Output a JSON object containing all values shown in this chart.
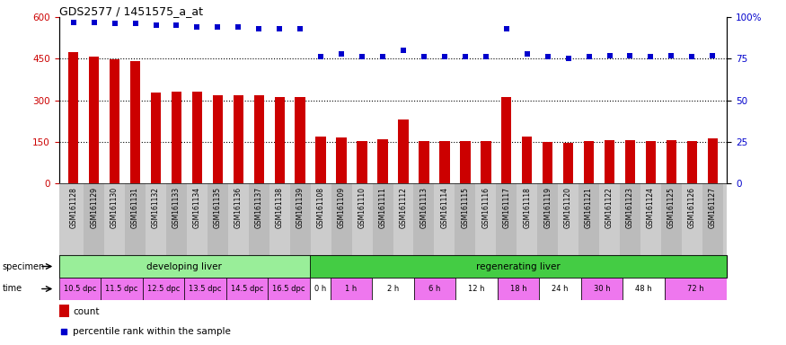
{
  "title": "GDS2577 / 1451575_a_at",
  "samples": [
    "GSM161128",
    "GSM161129",
    "GSM161130",
    "GSM161131",
    "GSM161132",
    "GSM161133",
    "GSM161134",
    "GSM161135",
    "GSM161136",
    "GSM161137",
    "GSM161138",
    "GSM161139",
    "GSM161108",
    "GSM161109",
    "GSM161110",
    "GSM161111",
    "GSM161112",
    "GSM161113",
    "GSM161114",
    "GSM161115",
    "GSM161116",
    "GSM161117",
    "GSM161118",
    "GSM161119",
    "GSM161120",
    "GSM161121",
    "GSM161122",
    "GSM161123",
    "GSM161124",
    "GSM161125",
    "GSM161126",
    "GSM161127"
  ],
  "counts": [
    475,
    457,
    447,
    440,
    328,
    332,
    330,
    317,
    318,
    317,
    312,
    311,
    170,
    165,
    153,
    158,
    230,
    152,
    153,
    153,
    153,
    312,
    168,
    150,
    147,
    153,
    155,
    155,
    152,
    155,
    152,
    162
  ],
  "percentile_ranks": [
    97,
    97,
    96,
    96,
    95,
    95,
    94,
    94,
    94,
    93,
    93,
    93,
    76,
    78,
    76,
    76,
    80,
    76,
    76,
    76,
    76,
    93,
    78,
    76,
    75,
    76,
    77,
    77,
    76,
    77,
    76,
    77
  ],
  "ylim_left": [
    0,
    600
  ],
  "ylim_right": [
    0,
    100
  ],
  "yticks_left": [
    0,
    150,
    300,
    450,
    600
  ],
  "yticks_right": [
    0,
    25,
    50,
    75,
    100
  ],
  "ytick_right_labels": [
    "0",
    "25",
    "50",
    "75",
    "100%"
  ],
  "bar_color": "#cc0000",
  "dot_color": "#0000cc",
  "bg_color": "#ffffff",
  "plot_bg_color": "#ffffff",
  "xticklabel_bg": "#cccccc",
  "specimen_groups": [
    {
      "label": "developing liver",
      "start": 0,
      "end": 12,
      "color": "#99ee99"
    },
    {
      "label": "regenerating liver",
      "start": 12,
      "end": 32,
      "color": "#44cc44"
    }
  ],
  "time_groups": [
    {
      "label": "10.5 dpc",
      "start": 0,
      "end": 2,
      "color": "#ee77ee"
    },
    {
      "label": "11.5 dpc",
      "start": 2,
      "end": 4,
      "color": "#ee77ee"
    },
    {
      "label": "12.5 dpc",
      "start": 4,
      "end": 6,
      "color": "#ee77ee"
    },
    {
      "label": "13.5 dpc",
      "start": 6,
      "end": 8,
      "color": "#ee77ee"
    },
    {
      "label": "14.5 dpc",
      "start": 8,
      "end": 10,
      "color": "#ee77ee"
    },
    {
      "label": "16.5 dpc",
      "start": 10,
      "end": 12,
      "color": "#ee77ee"
    },
    {
      "label": "0 h",
      "start": 12,
      "end": 13,
      "color": "#ffffff"
    },
    {
      "label": "1 h",
      "start": 13,
      "end": 15,
      "color": "#ee77ee"
    },
    {
      "label": "2 h",
      "start": 15,
      "end": 17,
      "color": "#ffffff"
    },
    {
      "label": "6 h",
      "start": 17,
      "end": 19,
      "color": "#ee77ee"
    },
    {
      "label": "12 h",
      "start": 19,
      "end": 21,
      "color": "#ffffff"
    },
    {
      "label": "18 h",
      "start": 21,
      "end": 23,
      "color": "#ee77ee"
    },
    {
      "label": "24 h",
      "start": 23,
      "end": 25,
      "color": "#ffffff"
    },
    {
      "label": "30 h",
      "start": 25,
      "end": 27,
      "color": "#ee77ee"
    },
    {
      "label": "48 h",
      "start": 27,
      "end": 29,
      "color": "#ffffff"
    },
    {
      "label": "72 h",
      "start": 29,
      "end": 32,
      "color": "#ee77ee"
    }
  ],
  "legend_count_label": "count",
  "legend_pct_label": "percentile rank within the sample",
  "legend_count_color": "#cc0000",
  "legend_dot_color": "#0000cc",
  "hgrid_values": [
    150,
    300,
    450
  ],
  "bar_width": 0.5
}
